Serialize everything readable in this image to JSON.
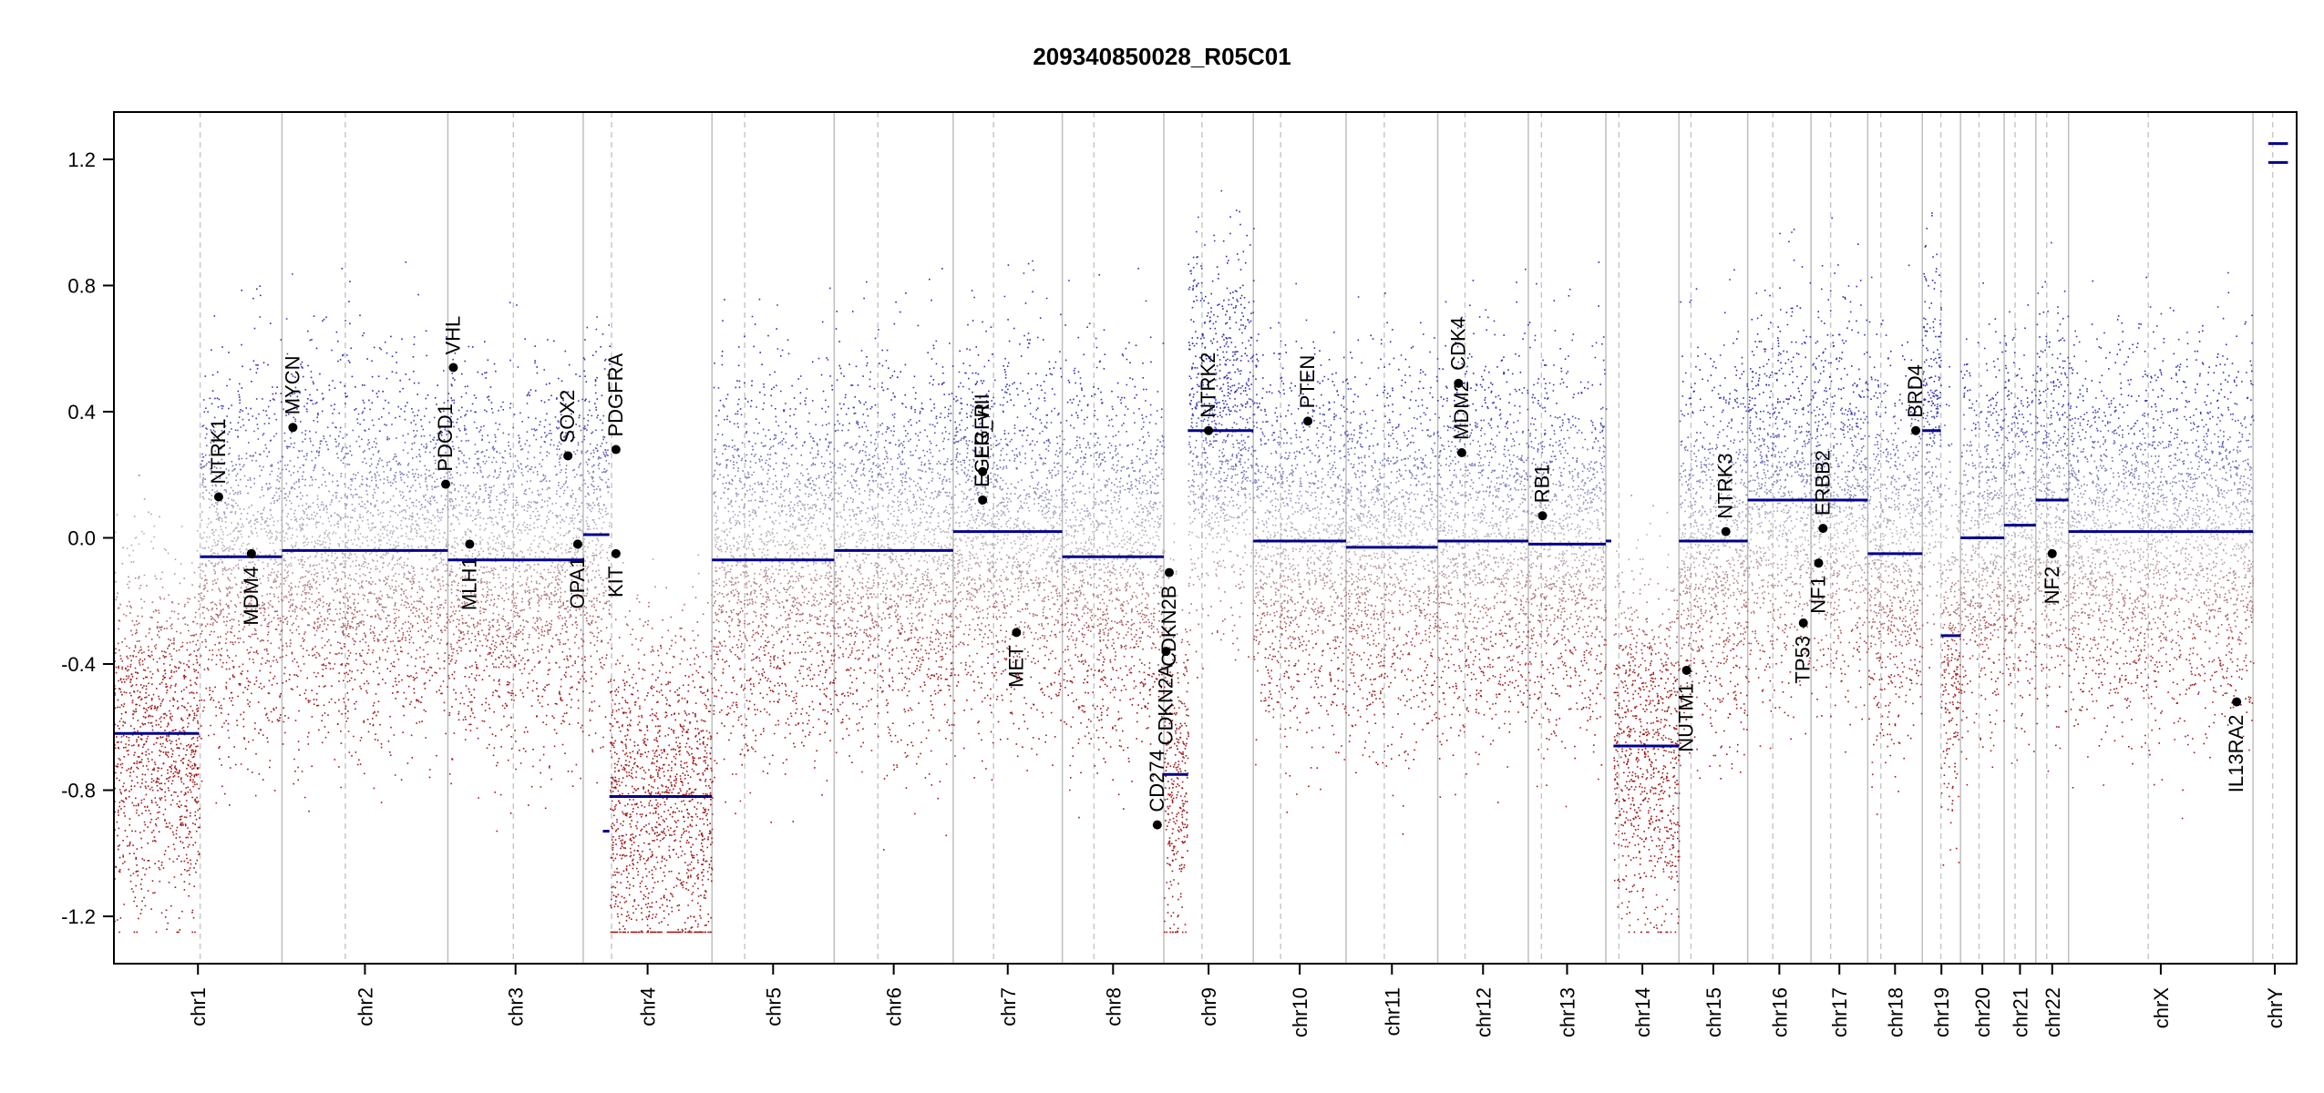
{
  "chart_data": {
    "type": "scatter",
    "title": "209340850028_R05C01",
    "xlabel": "",
    "ylabel": "",
    "ylim": [
      -1.35,
      1.35
    ],
    "y_ticks": [
      "1.2",
      "0.8",
      "0.4",
      "0.0",
      "-0.4",
      "-0.8",
      "-1.2"
    ],
    "y_tick_values": [
      1.2,
      0.8,
      0.4,
      0.0,
      -0.4,
      -0.8,
      -1.2
    ],
    "grid": false,
    "colors": {
      "gain": "#2f2fb5",
      "loss": "#a11a1a",
      "neutral": "#b0b0b0",
      "segment": "#00008b",
      "gene_point": "#000000",
      "chr_line": "#bfbfbf"
    },
    "chromosomes": [
      {
        "name": "chr1",
        "start": 0,
        "end": 0.0395,
        "centromere": 0.0395
      },
      {
        "name": "chr1",
        "start": 0,
        "end": 0.077,
        "centromere": 0.0395,
        "label": "chr1"
      },
      {
        "name": "chr2",
        "start": 0.077,
        "end": 0.153,
        "centromere": 0.106,
        "label": "chr2"
      },
      {
        "name": "chr3",
        "start": 0.153,
        "end": 0.215,
        "centromere": 0.183,
        "label": "chr3"
      },
      {
        "name": "chr4",
        "start": 0.215,
        "end": 0.274,
        "centromere": 0.228,
        "label": "chr4"
      },
      {
        "name": "chr5",
        "start": 0.274,
        "end": 0.33,
        "centromere": 0.289,
        "label": "chr5"
      },
      {
        "name": "chr6",
        "start": 0.33,
        "end": 0.3845,
        "centromere": 0.35,
        "label": "chr6"
      },
      {
        "name": "chr7",
        "start": 0.3845,
        "end": 0.4345,
        "centromere": 0.403,
        "label": "chr7"
      },
      {
        "name": "chr8",
        "start": 0.4345,
        "end": 0.481,
        "centromere": 0.449,
        "label": "chr8"
      },
      {
        "name": "chr9",
        "start": 0.481,
        "end": 0.522,
        "centromere": 0.4985,
        "label": "chr9"
      },
      {
        "name": "chr10",
        "start": 0.522,
        "end": 0.5645,
        "centromere": 0.5345,
        "label": "chr10"
      },
      {
        "name": "chr11",
        "start": 0.5645,
        "end": 0.6065,
        "centromere": 0.582,
        "label": "chr11"
      },
      {
        "name": "chr12",
        "start": 0.6065,
        "end": 0.648,
        "centromere": 0.619,
        "label": "chr12"
      },
      {
        "name": "chr13",
        "start": 0.648,
        "end": 0.6835,
        "centromere": 0.654,
        "label": "chr13"
      },
      {
        "name": "chr14",
        "start": 0.6835,
        "end": 0.717,
        "centromere": 0.6895,
        "label": "chr14"
      },
      {
        "name": "chr15",
        "start": 0.717,
        "end": 0.7485,
        "centromere": 0.7225,
        "label": "chr15"
      },
      {
        "name": "chr16",
        "start": 0.7485,
        "end": 0.7775,
        "centromere": 0.76,
        "label": "chr16"
      },
      {
        "name": "chr17",
        "start": 0.7775,
        "end": 0.8035,
        "centromere": 0.7865,
        "label": "chr17"
      },
      {
        "name": "chr18",
        "start": 0.8035,
        "end": 0.8285,
        "centromere": 0.8095,
        "label": "chr18"
      },
      {
        "name": "chr19",
        "start": 0.8285,
        "end": 0.846,
        "centromere": 0.837,
        "label": "chr19"
      },
      {
        "name": "chr20",
        "start": 0.846,
        "end": 0.866,
        "centromere": 0.8545,
        "label": "chr20"
      },
      {
        "name": "chr21",
        "start": 0.866,
        "end": 0.8805,
        "centromere": 0.871,
        "label": "chr21"
      },
      {
        "name": "chr22",
        "start": 0.8805,
        "end": 0.8955,
        "centromere": 0.8855,
        "label": "chr22"
      },
      {
        "name": "chrX",
        "start": 0.8955,
        "end": 0.98,
        "centromere": 0.932,
        "label": "chrX"
      },
      {
        "name": "chrY",
        "start": 0.98,
        "end": 1.0,
        "centromere": 0.989,
        "label": "chrY"
      }
    ],
    "segments": [
      {
        "x0": 0.0,
        "x1": 0.039,
        "y": -0.62
      },
      {
        "x0": 0.0395,
        "x1": 0.077,
        "y": -0.06
      },
      {
        "x0": 0.077,
        "x1": 0.153,
        "y": -0.04
      },
      {
        "x0": 0.153,
        "x1": 0.215,
        "y": -0.07
      },
      {
        "x0": 0.215,
        "x1": 0.227,
        "y": 0.01
      },
      {
        "x0": 0.224,
        "x1": 0.227,
        "y": -0.93
      },
      {
        "x0": 0.227,
        "x1": 0.274,
        "y": -0.82
      },
      {
        "x0": 0.274,
        "x1": 0.33,
        "y": -0.07
      },
      {
        "x0": 0.33,
        "x1": 0.3845,
        "y": -0.04
      },
      {
        "x0": 0.3845,
        "x1": 0.4345,
        "y": 0.02
      },
      {
        "x0": 0.4345,
        "x1": 0.481,
        "y": -0.06
      },
      {
        "x0": 0.481,
        "x1": 0.492,
        "y": -0.75
      },
      {
        "x0": 0.492,
        "x1": 0.522,
        "y": 0.34
      },
      {
        "x0": 0.522,
        "x1": 0.5645,
        "y": -0.01
      },
      {
        "x0": 0.5645,
        "x1": 0.6065,
        "y": -0.03
      },
      {
        "x0": 0.6065,
        "x1": 0.648,
        "y": -0.01
      },
      {
        "x0": 0.648,
        "x1": 0.6835,
        "y": -0.02
      },
      {
        "x0": 0.6835,
        "x1": 0.686,
        "y": -0.01
      },
      {
        "x0": 0.687,
        "x1": 0.717,
        "y": -0.66
      },
      {
        "x0": 0.717,
        "x1": 0.7485,
        "y": -0.01
      },
      {
        "x0": 0.7485,
        "x1": 0.7775,
        "y": 0.12
      },
      {
        "x0": 0.7775,
        "x1": 0.8035,
        "y": 0.12
      },
      {
        "x0": 0.8035,
        "x1": 0.8285,
        "y": -0.05
      },
      {
        "x0": 0.8285,
        "x1": 0.837,
        "y": 0.34
      },
      {
        "x0": 0.837,
        "x1": 0.846,
        "y": -0.31
      },
      {
        "x0": 0.846,
        "x1": 0.866,
        "y": 0.0
      },
      {
        "x0": 0.866,
        "x1": 0.8805,
        "y": 0.04
      },
      {
        "x0": 0.8805,
        "x1": 0.8955,
        "y": 0.12
      },
      {
        "x0": 0.8955,
        "x1": 0.98,
        "y": 0.02
      },
      {
        "x0": 0.987,
        "x1": 0.996,
        "y": 1.25
      },
      {
        "x0": 0.987,
        "x1": 0.996,
        "y": 1.19
      }
    ],
    "genes": [
      {
        "name": "NTRK1",
        "x": 0.048,
        "y": 0.13,
        "side": "up"
      },
      {
        "name": "MDM4",
        "x": 0.063,
        "y": -0.05,
        "side": "down"
      },
      {
        "name": "MYCN",
        "x": 0.082,
        "y": 0.35,
        "side": "up"
      },
      {
        "name": "PDCD1",
        "x": 0.152,
        "y": 0.17,
        "side": "up"
      },
      {
        "name": "VHL",
        "x": 0.1555,
        "y": 0.54,
        "side": "up"
      },
      {
        "name": "MLH1",
        "x": 0.163,
        "y": -0.02,
        "side": "down"
      },
      {
        "name": "SOX2",
        "x": 0.208,
        "y": 0.26,
        "side": "up"
      },
      {
        "name": "OPA1",
        "x": 0.2125,
        "y": -0.02,
        "side": "down"
      },
      {
        "name": "PDGFRA",
        "x": 0.23,
        "y": 0.28,
        "side": "up"
      },
      {
        "name": "KIT",
        "x": 0.23,
        "y": -0.05,
        "side": "down"
      },
      {
        "name": "EGFR",
        "x": 0.398,
        "y": 0.21,
        "side": "up"
      },
      {
        "name": "EGFR_vIII",
        "x": 0.398,
        "y": 0.12,
        "side": "up"
      },
      {
        "name": "MET",
        "x": 0.4135,
        "y": -0.3,
        "side": "down"
      },
      {
        "name": "CD274",
        "x": 0.478,
        "y": -0.91,
        "side": "up"
      },
      {
        "name": "CDKN2A",
        "x": 0.482,
        "y": -0.36,
        "side": "down"
      },
      {
        "name": "CDKN2B",
        "x": 0.4835,
        "y": -0.11,
        "side": "down"
      },
      {
        "name": "NTRK2",
        "x": 0.5015,
        "y": 0.34,
        "side": "up"
      },
      {
        "name": "PTEN",
        "x": 0.547,
        "y": 0.37,
        "side": "up"
      },
      {
        "name": "MDM2",
        "x": 0.6175,
        "y": 0.27,
        "side": "up"
      },
      {
        "name": "CDK4",
        "x": 0.616,
        "y": 0.49,
        "side": "up"
      },
      {
        "name": "RB1",
        "x": 0.6545,
        "y": 0.07,
        "side": "up"
      },
      {
        "name": "NUTM1",
        "x": 0.7205,
        "y": -0.42,
        "side": "down"
      },
      {
        "name": "NTRK3",
        "x": 0.7385,
        "y": 0.02,
        "side": "up"
      },
      {
        "name": "TP53",
        "x": 0.774,
        "y": -0.27,
        "side": "down"
      },
      {
        "name": "NF1",
        "x": 0.781,
        "y": -0.08,
        "side": "down"
      },
      {
        "name": "ERBB2",
        "x": 0.783,
        "y": 0.03,
        "side": "up"
      },
      {
        "name": "BRD4",
        "x": 0.8255,
        "y": 0.34,
        "side": "up"
      },
      {
        "name": "NF2",
        "x": 0.888,
        "y": -0.05,
        "side": "down"
      },
      {
        "name": "IL13RA2",
        "x": 0.9725,
        "y": -0.52,
        "side": "down"
      }
    ]
  }
}
